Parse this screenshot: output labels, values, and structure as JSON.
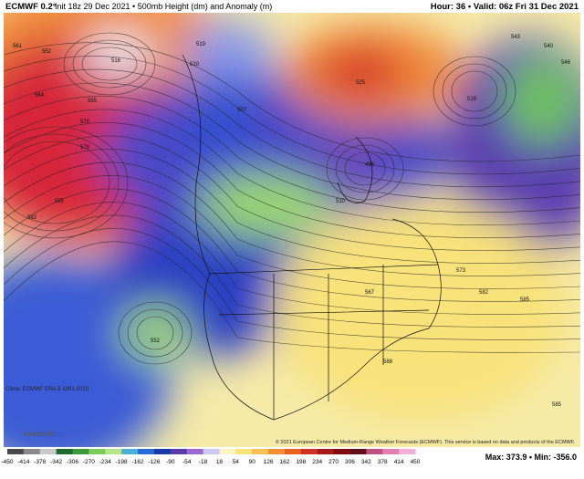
{
  "header": {
    "model": "ECMWF 0.2°",
    "description": "Init 18z 29 Dec 2021 • 500mb Height (dm) and Anomaly (m)",
    "hour": "Hour: 36",
    "valid": "Valid: 06z Fri 31 Dec 2021"
  },
  "contour_labels": [
    "561",
    "552",
    "564",
    "555",
    "570",
    "579",
    "585",
    "582",
    "519",
    "516",
    "510",
    "507",
    "498",
    "510",
    "525",
    "543",
    "540",
    "546",
    "519",
    "573",
    "582",
    "585",
    "552",
    "567",
    "588",
    "585"
  ],
  "footer": {
    "clima": "Clima: ECMWF ERA-5 1991-2020",
    "logo": "WeatherBELL",
    "copyright": "© 2021 European Centre for Medium-Range Weather Forecasts (ECMWF). This service is based on data and products of the ECMWF.",
    "stats": "Max: 373.9 • Min: -356.0"
  },
  "colorbar": {
    "labels": [
      -450,
      -414,
      -378,
      -342,
      -306,
      -270,
      -234,
      -198,
      -162,
      -126,
      -90,
      -54,
      -18,
      18,
      54,
      90,
      126,
      162,
      198,
      234,
      270,
      306,
      342,
      378,
      414,
      450
    ]
  }
}
